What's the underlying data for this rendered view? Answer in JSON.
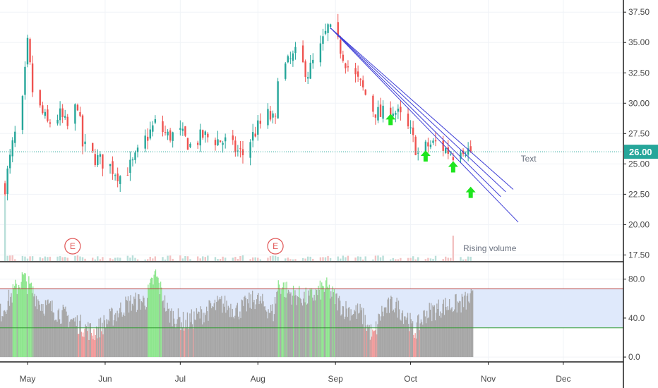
{
  "colors": {
    "up": "#26a69a",
    "down": "#ef5350",
    "trendline": "#3f3fd6",
    "price_line": "#26a69a",
    "arrow": "#1ee51e",
    "earnings": "#e05555",
    "osc_band": "#dfe9fb",
    "osc_fill": "#a6a6a6",
    "osc_high": "#8ee68e",
    "osc_low": "#f29a9a",
    "upper_line": "#b23b3b",
    "lower_line": "#2f9a2f",
    "grid": "#f0f3f7",
    "axis_text": "#4a4a4a"
  },
  "chart_data": [
    {
      "type": "candlestick",
      "name": "price-pane",
      "ylim": [
        17,
        38.5
      ],
      "y_ticks": [
        "37.50",
        "35.00",
        "32.50",
        "30.00",
        "27.50",
        "25.00",
        "22.50",
        "20.00",
        "17.50"
      ],
      "y_tick_values": [
        37.5,
        35,
        32.5,
        30,
        27.5,
        25,
        22.5,
        20,
        17.5
      ],
      "x_labels": [
        "May",
        "Jun",
        "Jul",
        "Aug",
        "Sep",
        "Oct",
        "Nov",
        "Dec"
      ],
      "last_price": 26.0,
      "last_price_label": "26.00",
      "price_path": [
        [
          "Apr 22",
          23.2
        ],
        [
          "Apr 25",
          26.5
        ],
        [
          "Apr 29",
          30.0
        ],
        [
          "May 1",
          34.8
        ],
        [
          "May 3",
          31.0
        ],
        [
          "May 6",
          29.5
        ],
        [
          "May 9",
          28.3
        ],
        [
          "May 14",
          29.0
        ],
        [
          "May 17",
          28.0
        ],
        [
          "May 21",
          30.0
        ],
        [
          "May 23",
          26.5
        ],
        [
          "May 28",
          25.5
        ],
        [
          "Jun 3",
          24.8
        ],
        [
          "Jun 7",
          24.0
        ],
        [
          "Jun 12",
          25.0
        ],
        [
          "Jun 17",
          27.0
        ],
        [
          "Jun 21",
          28.3
        ],
        [
          "Jun 26",
          27.3
        ],
        [
          "Jul 1",
          27.5
        ],
        [
          "Jul 5",
          26.5
        ],
        [
          "Jul 10",
          27.3
        ],
        [
          "Jul 15",
          27.0
        ],
        [
          "Jul 19",
          26.8
        ],
        [
          "Jul 24",
          26.0
        ],
        [
          "Jul 26",
          25.8
        ],
        [
          "Jul 29",
          27.0
        ],
        [
          "Aug 1",
          28.0
        ],
        [
          "Aug 5",
          29.0
        ],
        [
          "Aug 8",
          28.4
        ],
        [
          "Aug 9",
          32.5
        ],
        [
          "Aug 12",
          33.0
        ],
        [
          "Aug 16",
          34.0
        ],
        [
          "Aug 21",
          32.5
        ],
        [
          "Aug 26",
          34.5
        ],
        [
          "Aug 29",
          36.2
        ],
        [
          "Sep 3",
          34.5
        ],
        [
          "Sep 6",
          33.0
        ],
        [
          "Sep 11",
          31.5
        ],
        [
          "Sep 16",
          29.5
        ],
        [
          "Sep 19",
          29.0
        ],
        [
          "Sep 24",
          29.5
        ],
        [
          "Sep 27",
          28.8
        ],
        [
          "Oct 1",
          27.5
        ],
        [
          "Oct 4",
          25.8
        ],
        [
          "Oct 8",
          26.5
        ],
        [
          "Oct 11",
          26.7
        ],
        [
          "Oct 15",
          26.2
        ],
        [
          "Oct 18",
          25.8
        ],
        [
          "Oct 21",
          26.5
        ],
        [
          "Oct 25",
          26.0
        ]
      ],
      "earnings_markers": [
        {
          "date": "May 19",
          "label": "E"
        },
        {
          "date": "Aug 8",
          "label": "E"
        }
      ],
      "trendlines": [
        {
          "from": [
            "Aug 30",
            36.2
          ],
          "to": [
            "Nov 13",
            20.2
          ]
        },
        {
          "from": [
            "Aug 30",
            36.2
          ],
          "to": [
            "Nov 8",
            22.7
          ]
        },
        {
          "from": [
            "Aug 30",
            36.2
          ],
          "to": [
            "Nov 6",
            22.3
          ]
        },
        {
          "from": [
            "Aug 30",
            36.2
          ],
          "to": [
            "Nov 11",
            22.9
          ]
        }
      ],
      "arrows": [
        {
          "date": "Sep 23",
          "value": 28.6
        },
        {
          "date": "Oct 7",
          "value": 25.6
        },
        {
          "date": "Oct 18",
          "value": 24.7
        },
        {
          "date": "Oct 25",
          "value": 22.6
        }
      ],
      "annotations": [
        {
          "text": "Text",
          "date": "Nov 14",
          "value": 25.2
        },
        {
          "text": "Rising volume",
          "date": "Oct 22",
          "value": 17.8
        }
      ]
    },
    {
      "type": "area",
      "name": "oscillator-pane",
      "ylim": [
        -5,
        95
      ],
      "y_ticks": [
        "80.0",
        "40.0",
        "0.0"
      ],
      "y_tick_values": [
        80,
        40,
        0
      ],
      "upper_level": 70,
      "lower_level": 30,
      "level_anchors": [
        [
          "Apr 20",
          45
        ],
        [
          "Apr 29",
          82
        ],
        [
          "May 6",
          55
        ],
        [
          "May 14",
          45
        ],
        [
          "May 22",
          33
        ],
        [
          "May 27",
          25
        ],
        [
          "Jun 3",
          40
        ],
        [
          "Jun 10",
          55
        ],
        [
          "Jun 17",
          58
        ],
        [
          "Jun 21",
          85
        ],
        [
          "Jun 26",
          45
        ],
        [
          "Jul 3",
          35
        ],
        [
          "Jul 10",
          45
        ],
        [
          "Jul 17",
          55
        ],
        [
          "Jul 24",
          48
        ],
        [
          "Jul 31",
          60
        ],
        [
          "Aug 7",
          45
        ],
        [
          "Aug 9",
          75
        ],
        [
          "Aug 14",
          65
        ],
        [
          "Aug 21",
          60
        ],
        [
          "Aug 28",
          72
        ],
        [
          "Sep 4",
          50
        ],
        [
          "Sep 11",
          45
        ],
        [
          "Sep 13",
          35
        ],
        [
          "Sep 16",
          20
        ],
        [
          "Sep 19",
          45
        ],
        [
          "Sep 24",
          55
        ],
        [
          "Sep 30",
          40
        ],
        [
          "Oct 2",
          25
        ],
        [
          "Oct 7",
          45
        ],
        [
          "Oct 14",
          52
        ],
        [
          "Oct 21",
          55
        ],
        [
          "Oct 25",
          60
        ]
      ]
    }
  ]
}
